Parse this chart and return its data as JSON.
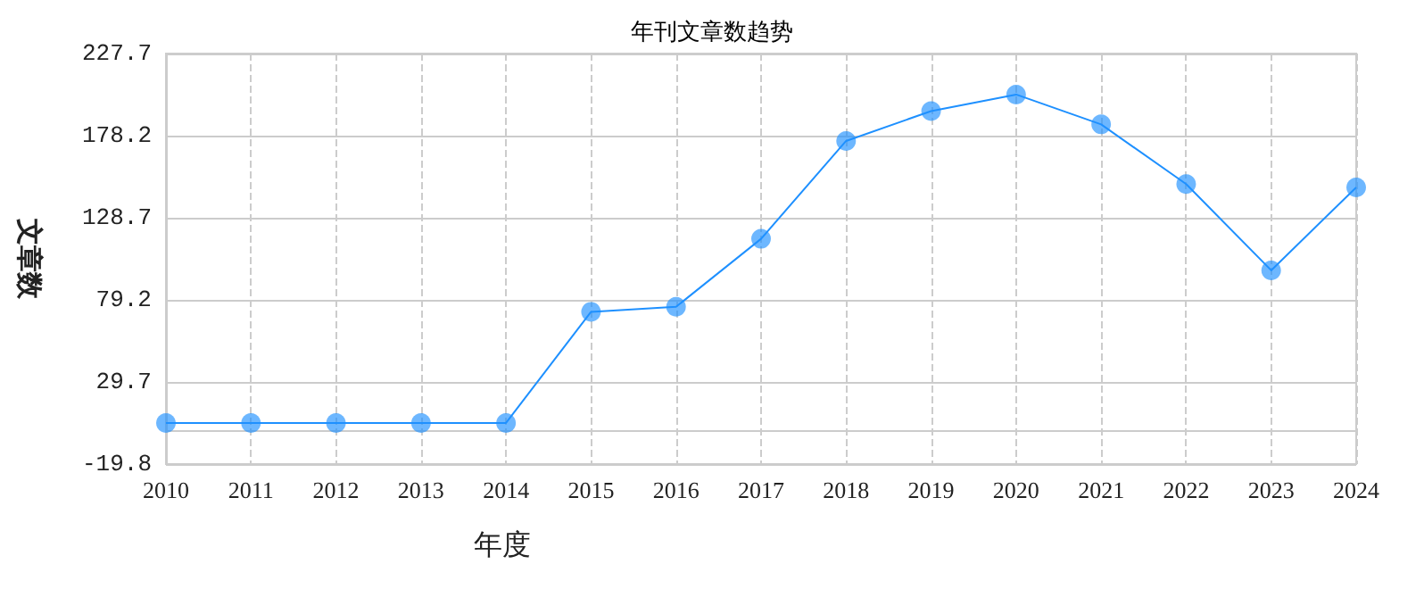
{
  "chart_data": {
    "type": "line",
    "title": "年刊文章数趋势",
    "xlabel": "年度",
    "ylabel": "文章数",
    "categories": [
      "2010",
      "2011",
      "2012",
      "2013",
      "2014",
      "2015",
      "2016",
      "2017",
      "2018",
      "2019",
      "2020",
      "2021",
      "2022",
      "2023",
      "2024"
    ],
    "series": [
      {
        "color": "#1e90ff",
        "values": [
          5,
          5,
          5,
          5,
          5,
          72,
          75,
          116,
          175,
          193,
          203,
          185,
          149,
          97,
          147
        ]
      }
    ],
    "ylim": [
      -19.8,
      227.7
    ],
    "yticks": [
      -19.8,
      29.7,
      79.2,
      128.7,
      178.2,
      227.7
    ],
    "grid": true,
    "marker": "circle",
    "line_style": "solid"
  }
}
